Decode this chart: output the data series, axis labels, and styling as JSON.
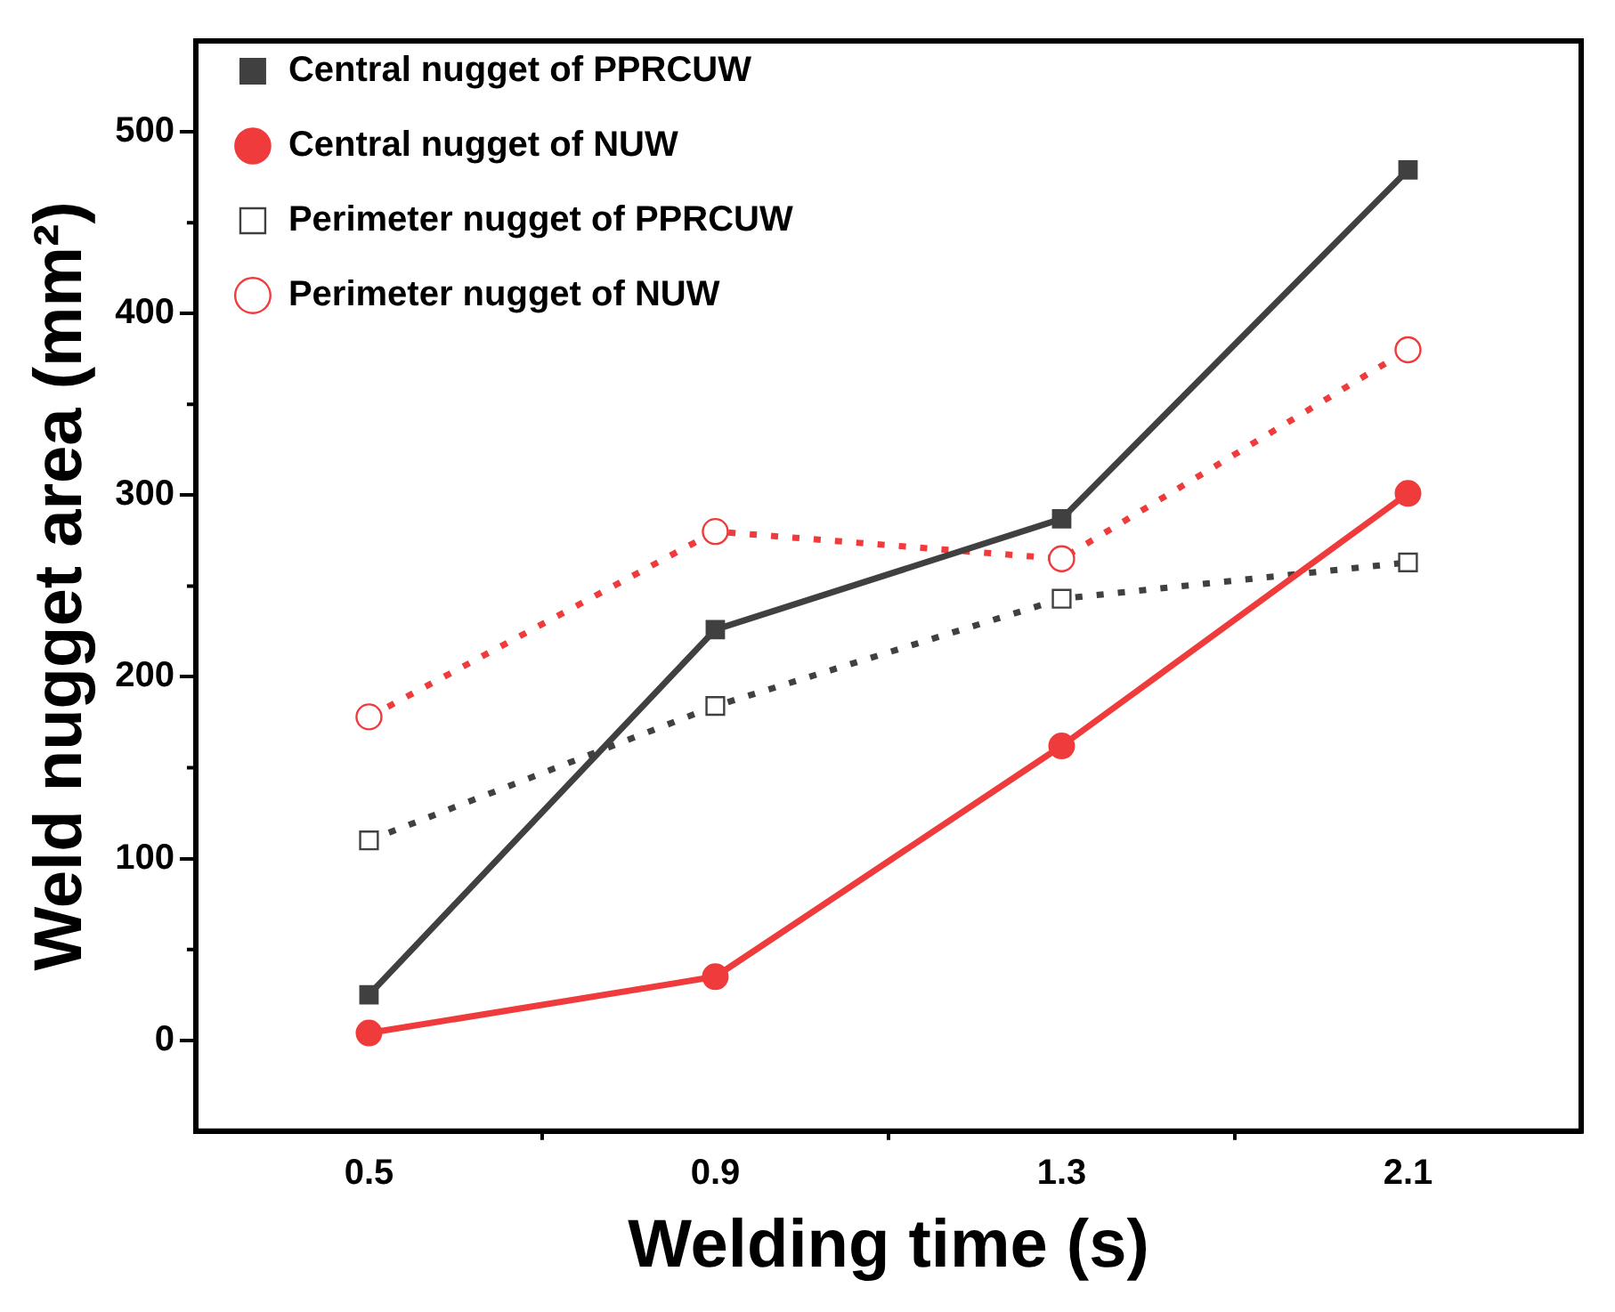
{
  "chart_data": {
    "type": "line",
    "xlabel": "Welding time (s)",
    "ylabel": "Weld nugget area (mm²)",
    "categories": [
      "0.5",
      "0.9",
      "1.3",
      "2.1"
    ],
    "ylim": [
      -50,
      550
    ],
    "yticks": [
      0,
      100,
      200,
      300,
      400,
      500
    ],
    "grid": false,
    "legend": "top left",
    "series": [
      {
        "name": "Central nugget of PPRCUW",
        "color": "#404040",
        "values": [
          25,
          226,
          287,
          479
        ],
        "marker": "square",
        "line_style": "solid"
      },
      {
        "name": "Central nugget of NUW",
        "color": "#ef3b3b",
        "values": [
          4,
          35,
          162,
          301
        ],
        "marker": "circle",
        "line_style": "solid"
      },
      {
        "name": "Perimeter nugget of PPRCUW",
        "color": "#404040",
        "values": [
          110,
          184,
          243,
          263
        ],
        "marker": "square",
        "line_style": "dotted"
      },
      {
        "name": "Perimeter nugget of NUW",
        "color": "#ef3b3b",
        "values": [
          178,
          280,
          265,
          380
        ],
        "marker": "circle",
        "line_style": "dotted"
      }
    ]
  }
}
